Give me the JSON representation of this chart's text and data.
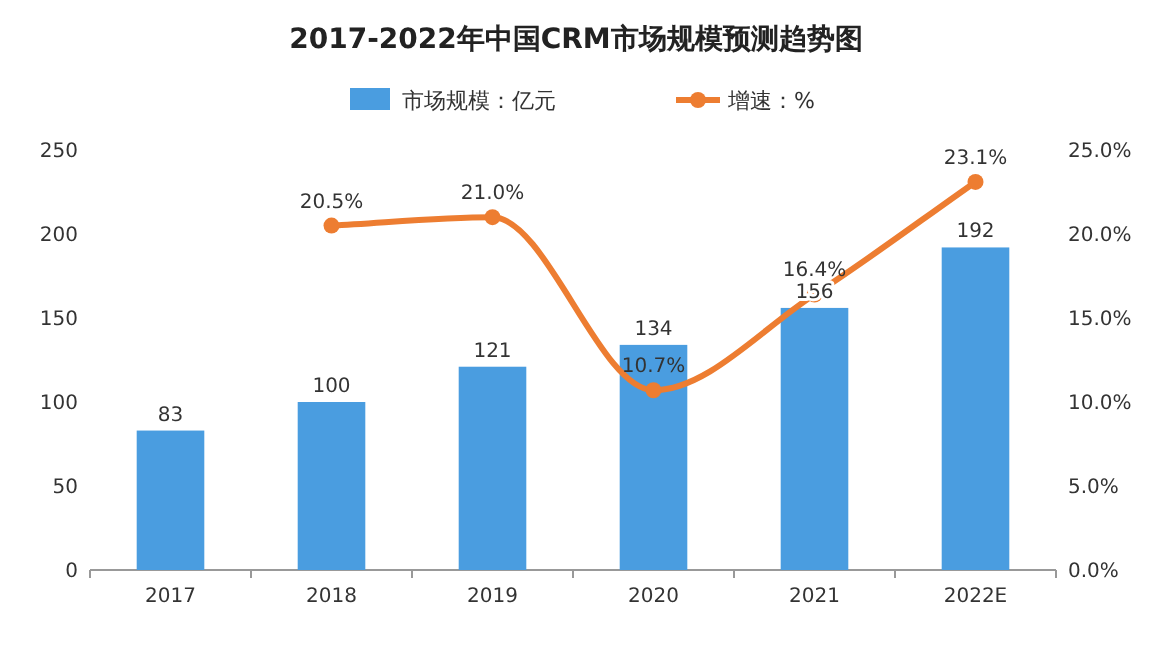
{
  "chart_data": {
    "type": "bar",
    "title": "2017-2022年中国CRM市场规模预测趋势图",
    "categories": [
      "2017",
      "2018",
      "2019",
      "2020",
      "2021",
      "2022E"
    ],
    "series": [
      {
        "name": "市场规模：亿元",
        "color": "#4a9de0",
        "values": [
          83,
          100,
          121,
          134,
          156,
          192
        ],
        "value_labels": [
          "83",
          "100",
          "121",
          "134",
          "156",
          "192"
        ]
      },
      {
        "name": "增速：%",
        "type": "line",
        "axis": "y2",
        "color": "#ed7d31",
        "marker": "circle",
        "values": [
          null,
          20.5,
          21.0,
          10.7,
          16.4,
          23.1
        ],
        "value_labels": [
          null,
          "20.5%",
          "21.0%",
          "10.7%",
          "16.4%",
          "23.1%"
        ]
      }
    ],
    "ylim": [
      0,
      250
    ],
    "yticks": [
      0,
      50,
      100,
      150,
      200,
      250
    ],
    "y2lim": [
      0,
      25
    ],
    "y2ticks": [
      {
        "value": 0,
        "label": "0.0%"
      },
      {
        "value": 5,
        "label": "5.0%"
      },
      {
        "value": 10,
        "label": "10.0%"
      },
      {
        "value": 15,
        "label": "15.0%"
      },
      {
        "value": 20,
        "label": "20.0%"
      },
      {
        "value": 25,
        "label": "25.0%"
      }
    ],
    "legend": "top",
    "grid": false
  }
}
